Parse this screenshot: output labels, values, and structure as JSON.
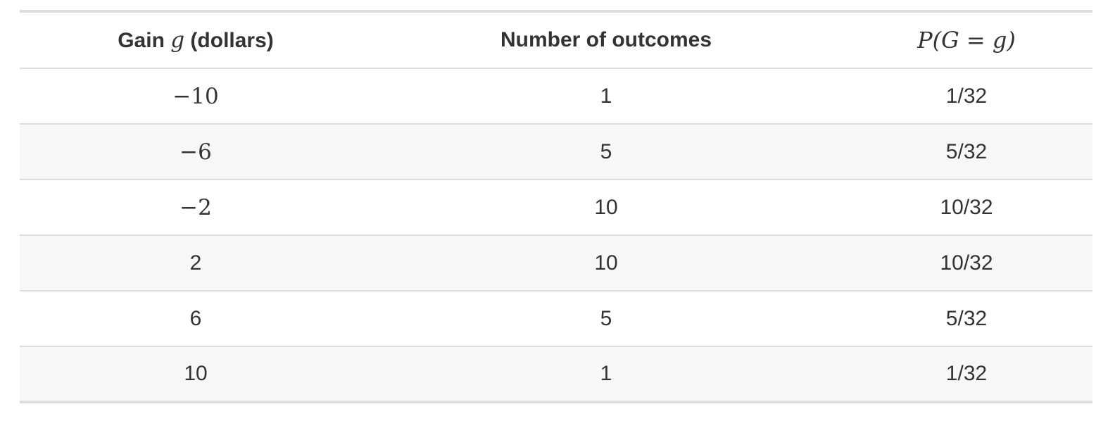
{
  "table": {
    "headers": {
      "gain_prefix": "Gain ",
      "gain_var": "g",
      "gain_suffix": " (dollars)",
      "outcomes": "Number of outcomes",
      "probability": "P(G = g)"
    },
    "rows": [
      {
        "gain": "−10",
        "outcomes": "1",
        "probability": "1/32"
      },
      {
        "gain": "−6",
        "outcomes": "5",
        "probability": "5/32"
      },
      {
        "gain": "−2",
        "outcomes": "10",
        "probability": "10/32"
      },
      {
        "gain": "2",
        "outcomes": "10",
        "probability": "10/32"
      },
      {
        "gain": "6",
        "outcomes": "5",
        "probability": "5/32"
      },
      {
        "gain": "10",
        "outcomes": "1",
        "probability": "1/32"
      }
    ]
  }
}
